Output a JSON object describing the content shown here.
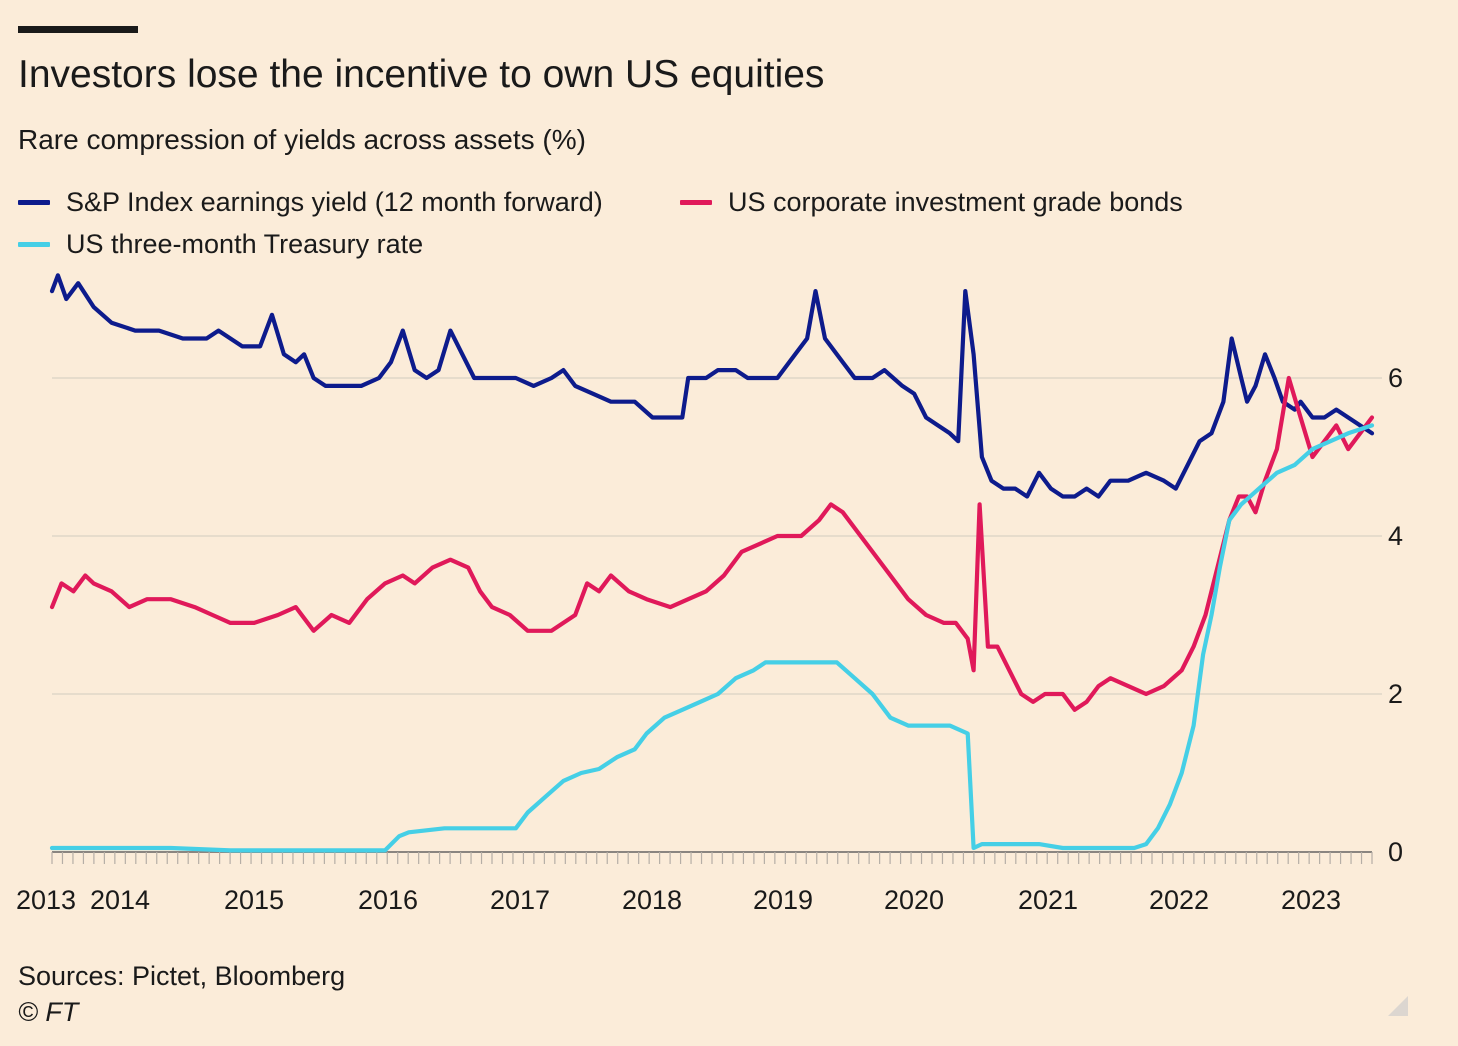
{
  "header": {
    "title": "Investors lose the incentive to own US equities",
    "subtitle": "Rare compression of yields across assets (%)"
  },
  "footer": {
    "sources": "Sources: Pictet, Bloomberg",
    "credit": "© FT"
  },
  "colors": {
    "background": "#fbecd9",
    "sp": "#0d1b8c",
    "corp": "#e0195a",
    "treasury": "#45cfe6",
    "grid": "#e0d6c8",
    "axis": "#8a8580",
    "text": "#1a1a1a"
  },
  "chart_data": {
    "type": "line",
    "title": "Investors lose the incentive to own US equities",
    "subtitle": "Rare compression of yields across assets (%)",
    "xlabel": "",
    "ylabel": "",
    "xlim": [
      2013.0,
      2023.5
    ],
    "ylim": [
      0,
      7.3
    ],
    "yticks": [
      0,
      2,
      4,
      6
    ],
    "ytick_labels": [
      "0",
      "2",
      "4",
      "6"
    ],
    "xticks": [
      2013,
      2014,
      2015,
      2016,
      2017,
      2018,
      2019,
      2020,
      2021,
      2022,
      2023
    ],
    "xtick_labels": [
      "2013",
      "2014",
      "2015",
      "2016",
      "2017",
      "2018",
      "2019",
      "2020",
      "2021",
      "2022",
      "2023"
    ],
    "grid": true,
    "y_axis_side": "right",
    "legend_position": "top",
    "series": [
      {
        "name": "S&P Index earnings yield (12 month forward)",
        "color": "#0d1b8c",
        "points": [
          [
            2013.0,
            7.1
          ],
          [
            2013.05,
            7.3
          ],
          [
            2013.12,
            7.0
          ],
          [
            2013.22,
            7.2
          ],
          [
            2013.35,
            6.9
          ],
          [
            2013.5,
            6.7
          ],
          [
            2013.7,
            6.6
          ],
          [
            2013.9,
            6.6
          ],
          [
            2014.1,
            6.5
          ],
          [
            2014.3,
            6.5
          ],
          [
            2014.4,
            6.6
          ],
          [
            2014.6,
            6.4
          ],
          [
            2014.75,
            6.4
          ],
          [
            2014.85,
            6.8
          ],
          [
            2014.95,
            6.3
          ],
          [
            2015.05,
            6.2
          ],
          [
            2015.12,
            6.3
          ],
          [
            2015.2,
            6.0
          ],
          [
            2015.3,
            5.9
          ],
          [
            2015.45,
            5.9
          ],
          [
            2015.6,
            5.9
          ],
          [
            2015.75,
            6.0
          ],
          [
            2015.85,
            6.2
          ],
          [
            2015.95,
            6.6
          ],
          [
            2016.05,
            6.1
          ],
          [
            2016.15,
            6.0
          ],
          [
            2016.25,
            6.1
          ],
          [
            2016.35,
            6.6
          ],
          [
            2016.45,
            6.3
          ],
          [
            2016.55,
            6.0
          ],
          [
            2016.7,
            6.0
          ],
          [
            2016.9,
            6.0
          ],
          [
            2017.05,
            5.9
          ],
          [
            2017.2,
            6.0
          ],
          [
            2017.3,
            6.1
          ],
          [
            2017.4,
            5.9
          ],
          [
            2017.55,
            5.8
          ],
          [
            2017.7,
            5.7
          ],
          [
            2017.9,
            5.7
          ],
          [
            2018.05,
            5.5
          ],
          [
            2018.2,
            5.5
          ],
          [
            2018.3,
            5.5
          ],
          [
            2018.35,
            6.0
          ],
          [
            2018.5,
            6.0
          ],
          [
            2018.6,
            6.1
          ],
          [
            2018.75,
            6.1
          ],
          [
            2018.85,
            6.0
          ],
          [
            2018.95,
            6.0
          ],
          [
            2019.1,
            6.0
          ],
          [
            2019.25,
            6.3
          ],
          [
            2019.35,
            6.5
          ],
          [
            2019.42,
            7.1
          ],
          [
            2019.5,
            6.5
          ],
          [
            2019.65,
            6.2
          ],
          [
            2019.75,
            6.0
          ],
          [
            2019.9,
            6.0
          ],
          [
            2020.0,
            6.1
          ],
          [
            2020.15,
            5.9
          ],
          [
            2020.25,
            5.8
          ],
          [
            2020.35,
            5.5
          ],
          [
            2020.45,
            5.4
          ],
          [
            2020.55,
            5.3
          ],
          [
            2020.62,
            5.2
          ],
          [
            2020.68,
            7.1
          ],
          [
            2020.75,
            6.3
          ],
          [
            2020.82,
            5.0
          ],
          [
            2020.9,
            4.7
          ],
          [
            2021.0,
            4.6
          ],
          [
            2021.1,
            4.6
          ],
          [
            2021.2,
            4.5
          ],
          [
            2021.3,
            4.8
          ],
          [
            2021.4,
            4.6
          ],
          [
            2021.5,
            4.5
          ],
          [
            2021.6,
            4.5
          ],
          [
            2021.7,
            4.6
          ],
          [
            2021.8,
            4.5
          ],
          [
            2021.9,
            4.7
          ],
          [
            2022.05,
            4.7
          ],
          [
            2022.2,
            4.8
          ],
          [
            2022.35,
            4.7
          ],
          [
            2022.45,
            4.6
          ],
          [
            2022.55,
            4.9
          ],
          [
            2022.65,
            5.2
          ],
          [
            2022.75,
            5.3
          ],
          [
            2022.85,
            5.7
          ],
          [
            2022.92,
            6.5
          ],
          [
            2023.0,
            6.0
          ],
          [
            2023.05,
            5.7
          ],
          [
            2023.12,
            5.9
          ],
          [
            2023.2,
            6.3
          ],
          [
            2023.28,
            6.0
          ],
          [
            2023.35,
            5.7
          ],
          [
            2023.45,
            5.6
          ],
          [
            2023.5,
            5.7
          ],
          [
            2023.6,
            5.5
          ],
          [
            2023.7,
            5.5
          ],
          [
            2023.8,
            5.6
          ],
          [
            2023.9,
            5.5
          ],
          [
            2024.0,
            5.4
          ],
          [
            2024.1,
            5.3
          ]
        ]
      },
      {
        "name": "US corporate investment grade bonds",
        "color": "#e0195a",
        "points": [
          [
            2013.0,
            3.1
          ],
          [
            2013.08,
            3.4
          ],
          [
            2013.18,
            3.3
          ],
          [
            2013.28,
            3.5
          ],
          [
            2013.35,
            3.4
          ],
          [
            2013.5,
            3.3
          ],
          [
            2013.65,
            3.1
          ],
          [
            2013.8,
            3.2
          ],
          [
            2014.0,
            3.2
          ],
          [
            2014.2,
            3.1
          ],
          [
            2014.35,
            3.0
          ],
          [
            2014.5,
            2.9
          ],
          [
            2014.7,
            2.9
          ],
          [
            2014.9,
            3.0
          ],
          [
            2015.05,
            3.1
          ],
          [
            2015.2,
            2.8
          ],
          [
            2015.35,
            3.0
          ],
          [
            2015.5,
            2.9
          ],
          [
            2015.65,
            3.2
          ],
          [
            2015.8,
            3.4
          ],
          [
            2015.95,
            3.5
          ],
          [
            2016.05,
            3.4
          ],
          [
            2016.2,
            3.6
          ],
          [
            2016.35,
            3.7
          ],
          [
            2016.5,
            3.6
          ],
          [
            2016.6,
            3.3
          ],
          [
            2016.7,
            3.1
          ],
          [
            2016.85,
            3.0
          ],
          [
            2017.0,
            2.8
          ],
          [
            2017.2,
            2.8
          ],
          [
            2017.4,
            3.0
          ],
          [
            2017.5,
            3.4
          ],
          [
            2017.6,
            3.3
          ],
          [
            2017.7,
            3.5
          ],
          [
            2017.85,
            3.3
          ],
          [
            2018.0,
            3.2
          ],
          [
            2018.2,
            3.1
          ],
          [
            2018.35,
            3.2
          ],
          [
            2018.5,
            3.3
          ],
          [
            2018.65,
            3.5
          ],
          [
            2018.8,
            3.8
          ],
          [
            2018.95,
            3.9
          ],
          [
            2019.1,
            4.0
          ],
          [
            2019.3,
            4.0
          ],
          [
            2019.45,
            4.2
          ],
          [
            2019.55,
            4.4
          ],
          [
            2019.65,
            4.3
          ],
          [
            2019.75,
            4.1
          ],
          [
            2019.9,
            3.8
          ],
          [
            2020.05,
            3.5
          ],
          [
            2020.2,
            3.2
          ],
          [
            2020.35,
            3.0
          ],
          [
            2020.5,
            2.9
          ],
          [
            2020.6,
            2.9
          ],
          [
            2020.7,
            2.7
          ],
          [
            2020.75,
            2.3
          ],
          [
            2020.8,
            4.4
          ],
          [
            2020.87,
            2.6
          ],
          [
            2020.95,
            2.6
          ],
          [
            2021.05,
            2.3
          ],
          [
            2021.15,
            2.0
          ],
          [
            2021.25,
            1.9
          ],
          [
            2021.35,
            2.0
          ],
          [
            2021.5,
            2.0
          ],
          [
            2021.6,
            1.8
          ],
          [
            2021.7,
            1.9
          ],
          [
            2021.8,
            2.1
          ],
          [
            2021.9,
            2.2
          ],
          [
            2022.05,
            2.1
          ],
          [
            2022.2,
            2.0
          ],
          [
            2022.35,
            2.1
          ],
          [
            2022.5,
            2.3
          ],
          [
            2022.6,
            2.6
          ],
          [
            2022.7,
            3.0
          ],
          [
            2022.8,
            3.6
          ],
          [
            2022.9,
            4.2
          ],
          [
            2022.98,
            4.5
          ],
          [
            2023.05,
            4.5
          ],
          [
            2023.12,
            4.3
          ],
          [
            2023.2,
            4.7
          ],
          [
            2023.3,
            5.1
          ],
          [
            2023.4,
            6.0
          ],
          [
            2023.5,
            5.5
          ],
          [
            2023.6,
            5.0
          ],
          [
            2023.7,
            5.2
          ],
          [
            2023.8,
            5.4
          ],
          [
            2023.9,
            5.1
          ],
          [
            2024.0,
            5.3
          ],
          [
            2024.1,
            5.5
          ]
        ]
      },
      {
        "name": "US three-month Treasury rate",
        "color": "#45cfe6",
        "points": [
          [
            2013.0,
            0.05
          ],
          [
            2013.5,
            0.05
          ],
          [
            2014.0,
            0.05
          ],
          [
            2014.5,
            0.02
          ],
          [
            2015.0,
            0.02
          ],
          [
            2015.5,
            0.02
          ],
          [
            2015.8,
            0.02
          ],
          [
            2015.92,
            0.2
          ],
          [
            2016.0,
            0.25
          ],
          [
            2016.3,
            0.3
          ],
          [
            2016.6,
            0.3
          ],
          [
            2016.9,
            0.3
          ],
          [
            2017.0,
            0.5
          ],
          [
            2017.15,
            0.7
          ],
          [
            2017.3,
            0.9
          ],
          [
            2017.45,
            1.0
          ],
          [
            2017.6,
            1.05
          ],
          [
            2017.75,
            1.2
          ],
          [
            2017.9,
            1.3
          ],
          [
            2018.0,
            1.5
          ],
          [
            2018.15,
            1.7
          ],
          [
            2018.3,
            1.8
          ],
          [
            2018.45,
            1.9
          ],
          [
            2018.6,
            2.0
          ],
          [
            2018.75,
            2.2
          ],
          [
            2018.9,
            2.3
          ],
          [
            2019.0,
            2.4
          ],
          [
            2019.2,
            2.4
          ],
          [
            2019.4,
            2.4
          ],
          [
            2019.6,
            2.4
          ],
          [
            2019.75,
            2.2
          ],
          [
            2019.9,
            2.0
          ],
          [
            2020.05,
            1.7
          ],
          [
            2020.2,
            1.6
          ],
          [
            2020.4,
            1.6
          ],
          [
            2020.55,
            1.6
          ],
          [
            2020.7,
            1.5
          ],
          [
            2020.75,
            0.05
          ],
          [
            2020.82,
            0.1
          ],
          [
            2021.0,
            0.1
          ],
          [
            2021.3,
            0.1
          ],
          [
            2021.5,
            0.05
          ],
          [
            2021.8,
            0.05
          ],
          [
            2022.0,
            0.05
          ],
          [
            2022.1,
            0.05
          ],
          [
            2022.2,
            0.1
          ],
          [
            2022.3,
            0.3
          ],
          [
            2022.4,
            0.6
          ],
          [
            2022.5,
            1.0
          ],
          [
            2022.6,
            1.6
          ],
          [
            2022.68,
            2.5
          ],
          [
            2022.75,
            3.0
          ],
          [
            2022.82,
            3.6
          ],
          [
            2022.9,
            4.2
          ],
          [
            2023.0,
            4.4
          ],
          [
            2023.15,
            4.6
          ],
          [
            2023.3,
            4.8
          ],
          [
            2023.45,
            4.9
          ],
          [
            2023.6,
            5.1
          ],
          [
            2023.75,
            5.2
          ],
          [
            2023.9,
            5.3
          ],
          [
            2024.1,
            5.4
          ]
        ]
      }
    ]
  }
}
